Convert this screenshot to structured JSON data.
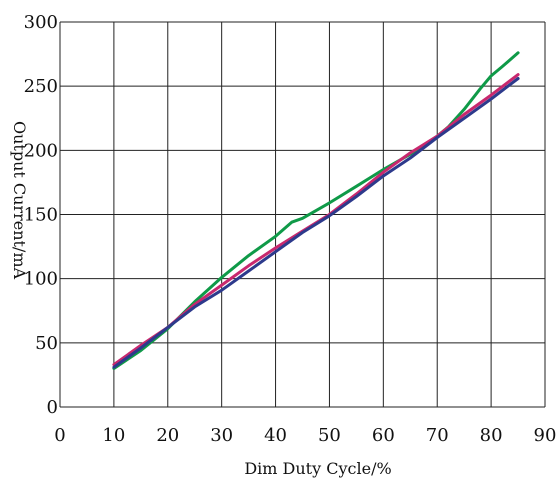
{
  "chart_data": {
    "type": "line",
    "title": "",
    "xlabel": "Dim Duty Cycle/%",
    "ylabel": "Output Current/mA",
    "xlim": [
      0,
      90
    ],
    "ylim": [
      0,
      300
    ],
    "xticks": [
      0,
      10,
      20,
      30,
      40,
      50,
      60,
      70,
      80,
      90
    ],
    "yticks": [
      0,
      50,
      100,
      150,
      200,
      250,
      300
    ],
    "grid": true,
    "legend": "none",
    "series": [
      {
        "color": "#0f9a48",
        "x": [
          10,
          15,
          20,
          25,
          30,
          35,
          40,
          43,
          45,
          50,
          55,
          60,
          65,
          70,
          72,
          75,
          78,
          80,
          82,
          85
        ],
        "y": [
          30,
          44,
          61,
          82,
          101,
          118,
          133,
          144,
          147,
          159,
          172,
          185,
          197,
          211,
          218,
          232,
          248,
          258,
          265,
          276
        ]
      },
      {
        "color": "#c8286e",
        "x": [
          10,
          15,
          20,
          25,
          30,
          35,
          40,
          45,
          50,
          55,
          60,
          65,
          70,
          75,
          80,
          85
        ],
        "y": [
          33,
          48,
          62,
          80,
          95,
          110,
          124,
          137,
          150,
          166,
          183,
          198,
          211,
          228,
          243,
          259
        ]
      },
      {
        "color": "#2d3a8c",
        "x": [
          10,
          15,
          20,
          25,
          30,
          35,
          40,
          45,
          50,
          55,
          60,
          65,
          70,
          75,
          80,
          85
        ],
        "y": [
          31,
          46,
          62,
          78,
          91,
          106,
          121,
          136,
          149,
          164,
          180,
          194,
          210,
          225,
          240,
          256
        ]
      }
    ]
  }
}
